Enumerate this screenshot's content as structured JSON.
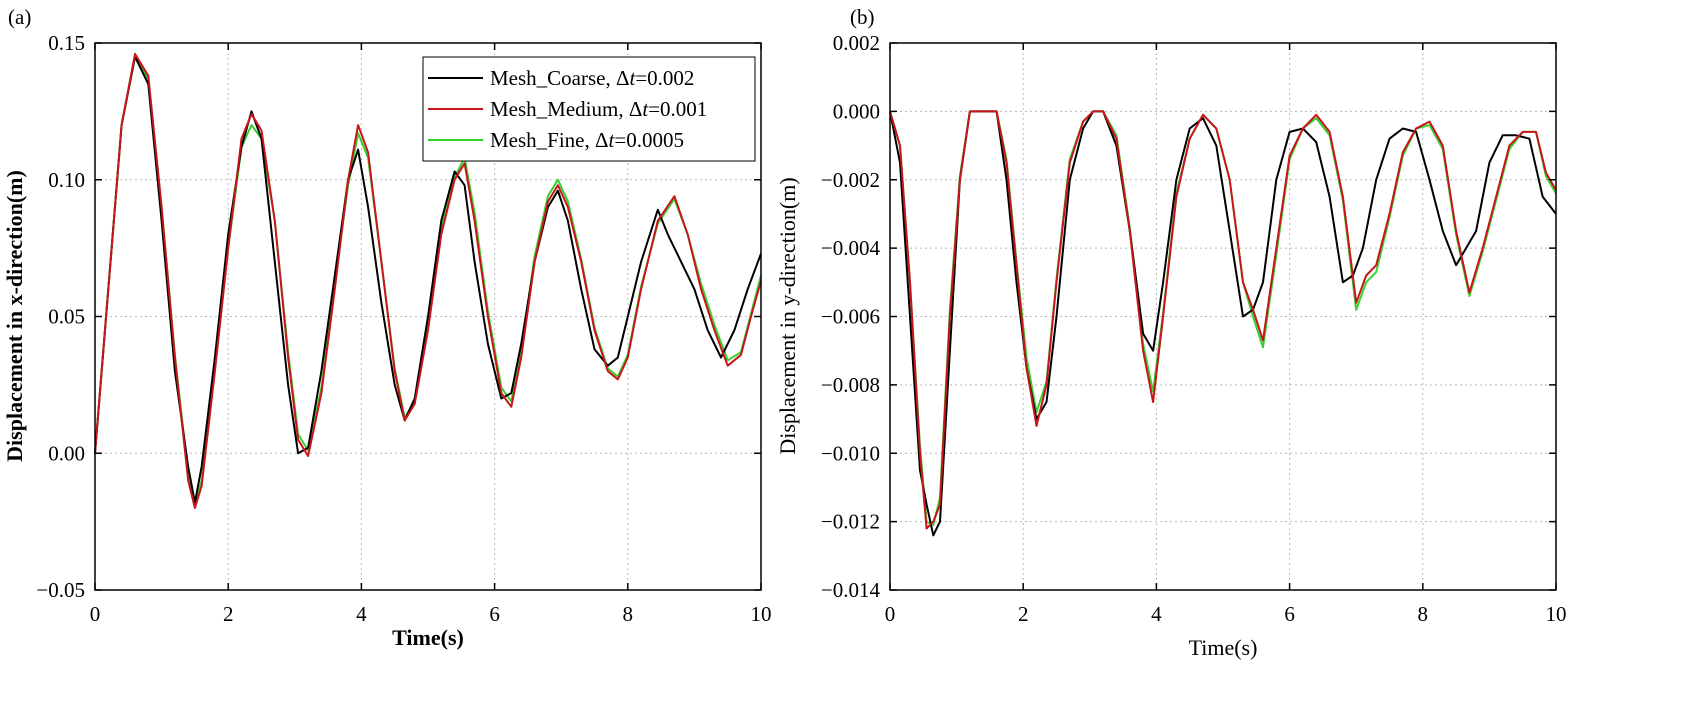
{
  "chart_data": [
    {
      "panel": "(a)",
      "type": "line",
      "xlabel": "Time(s)",
      "ylabel": "Displacement in x-direction(m)",
      "xlim": [
        0,
        10
      ],
      "ylim": [
        -0.05,
        0.15
      ],
      "xticks": [
        0,
        2,
        4,
        6,
        8,
        10
      ],
      "xtick_labels": [
        "0",
        "2",
        "4",
        "6",
        "8",
        "10"
      ],
      "yticks": [
        -0.05,
        0.0,
        0.05,
        0.1,
        0.15
      ],
      "ytick_labels": [
        "−0.05",
        "0.00",
        "0.05",
        "0.10",
        "0.15"
      ],
      "grid": true,
      "legend_position": "top-right",
      "series": [
        {
          "name": "Mesh_Coarse",
          "legend_label": "Mesh_Coarse, Δt=0.002",
          "legend_prefix": "Mesh_Coarse, Δ",
          "legend_italic": "t",
          "legend_suffix": "=0.002",
          "color": "#000000",
          "x": [
            0,
            0.2,
            0.4,
            0.6,
            0.8,
            1.0,
            1.2,
            1.4,
            1.5,
            1.6,
            1.8,
            2.0,
            2.2,
            2.35,
            2.5,
            2.7,
            2.9,
            3.05,
            3.2,
            3.4,
            3.6,
            3.8,
            3.95,
            4.1,
            4.3,
            4.5,
            4.65,
            4.8,
            5.0,
            5.2,
            5.4,
            5.55,
            5.7,
            5.9,
            6.1,
            6.25,
            6.4,
            6.6,
            6.8,
            6.95,
            7.1,
            7.3,
            7.5,
            7.7,
            7.85,
            8.0,
            8.2,
            8.45,
            8.6,
            8.8,
            9.0,
            9.2,
            9.4,
            9.6,
            9.8,
            10.0
          ],
          "y": [
            0.0,
            0.06,
            0.12,
            0.145,
            0.135,
            0.085,
            0.03,
            -0.005,
            -0.018,
            -0.005,
            0.035,
            0.08,
            0.112,
            0.125,
            0.115,
            0.07,
            0.025,
            0.0,
            0.002,
            0.03,
            0.065,
            0.1,
            0.111,
            0.09,
            0.055,
            0.025,
            0.012,
            0.02,
            0.05,
            0.085,
            0.103,
            0.098,
            0.07,
            0.04,
            0.02,
            0.022,
            0.04,
            0.07,
            0.09,
            0.096,
            0.085,
            0.06,
            0.038,
            0.032,
            0.035,
            0.05,
            0.07,
            0.089,
            0.08,
            0.07,
            0.06,
            0.045,
            0.035,
            0.045,
            0.06,
            0.073
          ]
        },
        {
          "name": "Mesh_Medium",
          "legend_label": "Mesh_Medium, Δt=0.001",
          "legend_prefix": "Mesh_Medium, Δ",
          "legend_italic": "t",
          "legend_suffix": "=0.001",
          "color": "#c8151b",
          "x": [
            0,
            0.2,
            0.4,
            0.6,
            0.8,
            1.0,
            1.2,
            1.4,
            1.5,
            1.6,
            1.8,
            2.0,
            2.2,
            2.35,
            2.5,
            2.7,
            2.9,
            3.05,
            3.2,
            3.4,
            3.6,
            3.8,
            3.95,
            4.1,
            4.3,
            4.5,
            4.65,
            4.8,
            5.0,
            5.2,
            5.4,
            5.55,
            5.7,
            5.9,
            6.1,
            6.25,
            6.4,
            6.6,
            6.8,
            6.95,
            7.1,
            7.3,
            7.5,
            7.7,
            7.85,
            8.0,
            8.2,
            8.45,
            8.7,
            8.9,
            9.1,
            9.3,
            9.5,
            9.7,
            9.85,
            10.0
          ],
          "y": [
            0.0,
            0.06,
            0.12,
            0.146,
            0.138,
            0.09,
            0.035,
            -0.01,
            -0.02,
            -0.012,
            0.03,
            0.075,
            0.115,
            0.124,
            0.118,
            0.085,
            0.035,
            0.005,
            -0.001,
            0.022,
            0.06,
            0.1,
            0.12,
            0.11,
            0.07,
            0.03,
            0.012,
            0.018,
            0.045,
            0.08,
            0.1,
            0.106,
            0.085,
            0.05,
            0.022,
            0.017,
            0.035,
            0.07,
            0.092,
            0.098,
            0.09,
            0.07,
            0.045,
            0.03,
            0.027,
            0.035,
            0.06,
            0.085,
            0.094,
            0.08,
            0.06,
            0.045,
            0.032,
            0.036,
            0.05,
            0.063
          ]
        },
        {
          "name": "Mesh_Fine",
          "legend_label": "Mesh_Fine, Δt=0.0005",
          "legend_prefix": "Mesh_Fine, Δ",
          "legend_italic": "t",
          "legend_suffix": "=0.0005",
          "color": "#35d12c",
          "x": [
            0,
            0.2,
            0.4,
            0.6,
            0.8,
            1.0,
            1.2,
            1.4,
            1.5,
            1.6,
            1.8,
            2.0,
            2.2,
            2.35,
            2.5,
            2.7,
            2.9,
            3.05,
            3.2,
            3.4,
            3.6,
            3.8,
            3.95,
            4.1,
            4.3,
            4.5,
            4.65,
            4.8,
            5.0,
            5.2,
            5.4,
            5.55,
            5.7,
            5.9,
            6.1,
            6.25,
            6.4,
            6.6,
            6.8,
            6.95,
            7.1,
            7.3,
            7.5,
            7.7,
            7.85,
            8.0,
            8.2,
            8.45,
            8.7,
            8.9,
            9.1,
            9.3,
            9.5,
            9.7,
            9.85,
            10.0
          ],
          "y": [
            0.0,
            0.06,
            0.12,
            0.145,
            0.137,
            0.09,
            0.036,
            -0.008,
            -0.019,
            -0.01,
            0.031,
            0.075,
            0.112,
            0.12,
            0.115,
            0.085,
            0.037,
            0.007,
            0.001,
            0.024,
            0.062,
            0.098,
            0.117,
            0.108,
            0.07,
            0.031,
            0.013,
            0.019,
            0.047,
            0.082,
            0.101,
            0.108,
            0.088,
            0.052,
            0.024,
            0.019,
            0.037,
            0.072,
            0.094,
            0.1,
            0.092,
            0.071,
            0.046,
            0.031,
            0.028,
            0.036,
            0.061,
            0.084,
            0.093,
            0.08,
            0.062,
            0.047,
            0.034,
            0.037,
            0.051,
            0.065
          ]
        }
      ]
    },
    {
      "panel": "(b)",
      "type": "line",
      "xlabel": "Time(s)",
      "ylabel": "Displacement in y-direction(m)",
      "xlim": [
        0,
        10
      ],
      "ylim": [
        -0.014,
        0.002
      ],
      "xticks": [
        0,
        2,
        4,
        6,
        8,
        10
      ],
      "xtick_labels": [
        "0",
        "2",
        "4",
        "6",
        "8",
        "10"
      ],
      "yticks": [
        -0.014,
        -0.012,
        -0.01,
        -0.008,
        -0.006,
        -0.004,
        -0.002,
        0.0,
        0.002
      ],
      "ytick_labels": [
        "−0.014",
        "−0.012",
        "−0.010",
        "−0.008",
        "−0.006",
        "−0.004",
        "−0.002",
        "0.000",
        "0.002"
      ],
      "grid": true,
      "legend_position": "none",
      "series": [
        {
          "name": "Mesh_Coarse",
          "color": "#000000",
          "x": [
            0,
            0.15,
            0.3,
            0.45,
            0.55,
            0.65,
            0.75,
            0.9,
            1.05,
            1.2,
            1.4,
            1.6,
            1.75,
            1.9,
            2.05,
            2.2,
            2.35,
            2.5,
            2.7,
            2.9,
            3.05,
            3.2,
            3.4,
            3.6,
            3.8,
            3.95,
            4.1,
            4.3,
            4.5,
            4.7,
            4.9,
            5.1,
            5.3,
            5.45,
            5.6,
            5.8,
            6.0,
            6.2,
            6.4,
            6.6,
            6.8,
            6.95,
            7.1,
            7.3,
            7.5,
            7.7,
            7.9,
            8.1,
            8.3,
            8.5,
            8.65,
            8.8,
            9.0,
            9.2,
            9.4,
            9.6,
            9.8,
            10.0
          ],
          "y": [
            0.0,
            -0.0015,
            -0.006,
            -0.0105,
            -0.0115,
            -0.0124,
            -0.012,
            -0.007,
            -0.002,
            0.0,
            0.0,
            0.0,
            -0.002,
            -0.005,
            -0.0075,
            -0.009,
            -0.0085,
            -0.006,
            -0.002,
            -0.0005,
            0.0,
            0.0,
            -0.001,
            -0.0035,
            -0.0065,
            -0.007,
            -0.005,
            -0.002,
            -0.0005,
            -0.0002,
            -0.001,
            -0.0035,
            -0.006,
            -0.0058,
            -0.005,
            -0.002,
            -0.0006,
            -0.0005,
            -0.0009,
            -0.0025,
            -0.005,
            -0.0048,
            -0.004,
            -0.002,
            -0.0008,
            -0.0005,
            -0.0006,
            -0.002,
            -0.0035,
            -0.0045,
            -0.004,
            -0.0035,
            -0.0015,
            -0.0007,
            -0.0007,
            -0.0008,
            -0.0025,
            -0.003
          ]
        },
        {
          "name": "Mesh_Medium",
          "color": "#c8151b",
          "x": [
            0,
            0.15,
            0.3,
            0.45,
            0.55,
            0.65,
            0.75,
            0.9,
            1.05,
            1.2,
            1.4,
            1.6,
            1.75,
            1.9,
            2.05,
            2.2,
            2.35,
            2.5,
            2.7,
            2.9,
            3.05,
            3.2,
            3.4,
            3.6,
            3.8,
            3.95,
            4.1,
            4.3,
            4.5,
            4.7,
            4.9,
            5.1,
            5.3,
            5.45,
            5.6,
            5.8,
            6.0,
            6.2,
            6.4,
            6.6,
            6.8,
            7.0,
            7.15,
            7.3,
            7.5,
            7.7,
            7.9,
            8.1,
            8.3,
            8.5,
            8.7,
            8.9,
            9.1,
            9.3,
            9.5,
            9.7,
            9.85,
            10.0
          ],
          "y": [
            0.0,
            -0.001,
            -0.005,
            -0.01,
            -0.0122,
            -0.012,
            -0.0115,
            -0.006,
            -0.002,
            0.0,
            0.0,
            0.0,
            -0.0015,
            -0.0045,
            -0.0075,
            -0.0092,
            -0.008,
            -0.005,
            -0.0015,
            -0.0003,
            0.0,
            0.0,
            -0.0008,
            -0.0035,
            -0.007,
            -0.0085,
            -0.006,
            -0.0025,
            -0.0008,
            -0.0001,
            -0.0005,
            -0.002,
            -0.005,
            -0.0058,
            -0.0067,
            -0.004,
            -0.0013,
            -0.0005,
            -0.0001,
            -0.0006,
            -0.0025,
            -0.0056,
            -0.0048,
            -0.0045,
            -0.003,
            -0.0012,
            -0.0005,
            -0.0003,
            -0.001,
            -0.0035,
            -0.0053,
            -0.004,
            -0.0025,
            -0.001,
            -0.0006,
            -0.0006,
            -0.0018,
            -0.0023
          ]
        },
        {
          "name": "Mesh_Fine",
          "color": "#35d12c",
          "x": [
            0,
            0.15,
            0.3,
            0.45,
            0.55,
            0.65,
            0.75,
            0.9,
            1.05,
            1.2,
            1.4,
            1.6,
            1.75,
            1.9,
            2.05,
            2.2,
            2.35,
            2.5,
            2.7,
            2.9,
            3.05,
            3.2,
            3.4,
            3.6,
            3.8,
            3.95,
            4.1,
            4.3,
            4.5,
            4.7,
            4.9,
            5.1,
            5.3,
            5.45,
            5.6,
            5.8,
            6.0,
            6.2,
            6.4,
            6.6,
            6.8,
            7.0,
            7.15,
            7.3,
            7.5,
            7.7,
            7.9,
            8.1,
            8.3,
            8.5,
            8.7,
            8.9,
            9.1,
            9.3,
            9.5,
            9.7,
            9.85,
            10.0
          ],
          "y": [
            0.0,
            -0.001,
            -0.005,
            -0.0098,
            -0.012,
            -0.0121,
            -0.0113,
            -0.0058,
            -0.0019,
            0.0,
            0.0,
            0.0,
            -0.0014,
            -0.0044,
            -0.0072,
            -0.0088,
            -0.0079,
            -0.0049,
            -0.0014,
            -0.0003,
            0.0,
            0.0,
            -0.0007,
            -0.0034,
            -0.0068,
            -0.0082,
            -0.0059,
            -0.0024,
            -0.0008,
            -0.0001,
            -0.0005,
            -0.002,
            -0.005,
            -0.006,
            -0.0069,
            -0.0042,
            -0.0014,
            -0.0005,
            -0.0002,
            -0.0007,
            -0.0026,
            -0.0058,
            -0.005,
            -0.0047,
            -0.0031,
            -0.0013,
            -0.0005,
            -0.0004,
            -0.0011,
            -0.0036,
            -0.0054,
            -0.0041,
            -0.0026,
            -0.0011,
            -0.0006,
            -0.0006,
            -0.0019,
            -0.0024
          ]
        }
      ]
    }
  ]
}
